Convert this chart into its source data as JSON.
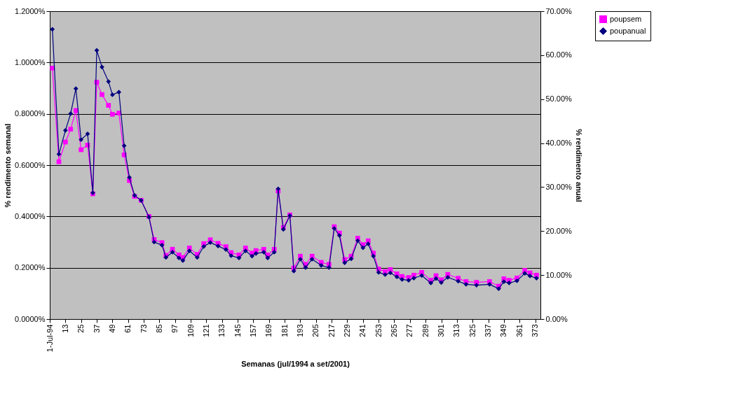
{
  "chart_data": {
    "type": "line",
    "xlabel": "Semanas (jul/1994 a set/2001)",
    "ylabel": "% rendimento semanal",
    "y2label": "% rendimento anual",
    "x": [
      3,
      8,
      13,
      17,
      21,
      25,
      30,
      34,
      37,
      41,
      46,
      49,
      54,
      58,
      62,
      66,
      71,
      77,
      81,
      87,
      90,
      95,
      100,
      103,
      108,
      114,
      119,
      124,
      130,
      136,
      140,
      146,
      151,
      156,
      159,
      165,
      168,
      173,
      176,
      180,
      185,
      188,
      193,
      197,
      202,
      209,
      215,
      219,
      223,
      227,
      232,
      237,
      241,
      245,
      249,
      253,
      258,
      262,
      267,
      271,
      276,
      280,
      286,
      293,
      297,
      301,
      306,
      314,
      320,
      328,
      338,
      345,
      349,
      353,
      359,
      365,
      369,
      374
    ],
    "series": [
      {
        "name": "poupsem",
        "color": "#ff00ff",
        "marker": "square",
        "values": [
          0.978,
          0.613,
          0.69,
          0.74,
          0.813,
          0.66,
          0.678,
          0.488,
          0.923,
          0.875,
          0.833,
          0.798,
          0.803,
          0.64,
          0.54,
          0.478,
          0.463,
          0.4,
          0.31,
          0.298,
          0.248,
          0.272,
          0.25,
          0.24,
          0.277,
          0.252,
          0.294,
          0.309,
          0.295,
          0.282,
          0.259,
          0.25,
          0.277,
          0.257,
          0.267,
          0.272,
          0.25,
          0.272,
          0.499,
          0.357,
          0.406,
          0.199,
          0.245,
          0.213,
          0.245,
          0.221,
          0.213,
          0.36,
          0.335,
          0.232,
          0.245,
          0.315,
          0.29,
          0.305,
          0.257,
          0.195,
          0.185,
          0.193,
          0.176,
          0.166,
          0.162,
          0.171,
          0.182,
          0.151,
          0.169,
          0.153,
          0.174,
          0.159,
          0.146,
          0.143,
          0.146,
          0.128,
          0.157,
          0.151,
          0.16,
          0.19,
          0.18,
          0.171
        ]
      },
      {
        "name": "poupanual",
        "color": "#000080",
        "marker": "diamond",
        "axis": "y2",
        "values": [
          65.9,
          37.5,
          42.9,
          46.7,
          52.4,
          40.8,
          42.1,
          28.7,
          61.1,
          57.3,
          54.0,
          51.0,
          51.6,
          39.4,
          32.2,
          28.1,
          27.0,
          23.2,
          17.5,
          16.8,
          14.0,
          15.2,
          13.9,
          13.3,
          15.5,
          14.0,
          16.5,
          17.4,
          16.6,
          15.8,
          14.4,
          13.9,
          15.5,
          14.3,
          14.9,
          15.2,
          13.9,
          15.2,
          29.6,
          20.4,
          23.5,
          10.9,
          13.6,
          11.7,
          13.6,
          12.2,
          11.7,
          20.6,
          19.0,
          12.8,
          13.7,
          17.8,
          16.2,
          17.1,
          14.3,
          10.6,
          10.1,
          10.5,
          9.6,
          9.0,
          8.8,
          9.3,
          9.9,
          8.2,
          9.2,
          8.3,
          9.5,
          8.6,
          7.9,
          7.7,
          7.9,
          6.9,
          8.5,
          8.2,
          8.7,
          10.4,
          9.8,
          9.3
        ]
      }
    ],
    "xlim": [
      1,
      377
    ],
    "xticks": [
      {
        "value": 1,
        "label": "1-Jul-94"
      },
      13,
      25,
      37,
      49,
      61,
      73,
      85,
      97,
      109,
      121,
      133,
      145,
      157,
      169,
      181,
      193,
      205,
      217,
      229,
      241,
      253,
      265,
      277,
      289,
      301,
      313,
      325,
      337,
      349,
      361,
      373
    ],
    "ylim": [
      0,
      1.2
    ],
    "yticks": [
      {
        "value": 0,
        "label": "0.0000%"
      },
      {
        "value": 0.2,
        "label": "0.2000%"
      },
      {
        "value": 0.4,
        "label": "0.4000%"
      },
      {
        "value": 0.6,
        "label": "0.6000%"
      },
      {
        "value": 0.8,
        "label": "0.8000%"
      },
      {
        "value": 1.0,
        "label": "1.0000%"
      },
      {
        "value": 1.2,
        "label": "1.2000%"
      }
    ],
    "y2lim": [
      0,
      70
    ],
    "y2ticks": [
      {
        "value": 0,
        "label": "0.00%"
      },
      {
        "value": 10,
        "label": "10.00%"
      },
      {
        "value": 20,
        "label": "20.00%"
      },
      {
        "value": 30,
        "label": "30.00%"
      },
      {
        "value": 40,
        "label": "40.00%"
      },
      {
        "value": 50,
        "label": "50.00%"
      },
      {
        "value": 60,
        "label": "60.00%"
      },
      {
        "value": 70,
        "label": "70.00%"
      }
    ],
    "grid": "y",
    "legend": "right",
    "line_style": "solid"
  }
}
